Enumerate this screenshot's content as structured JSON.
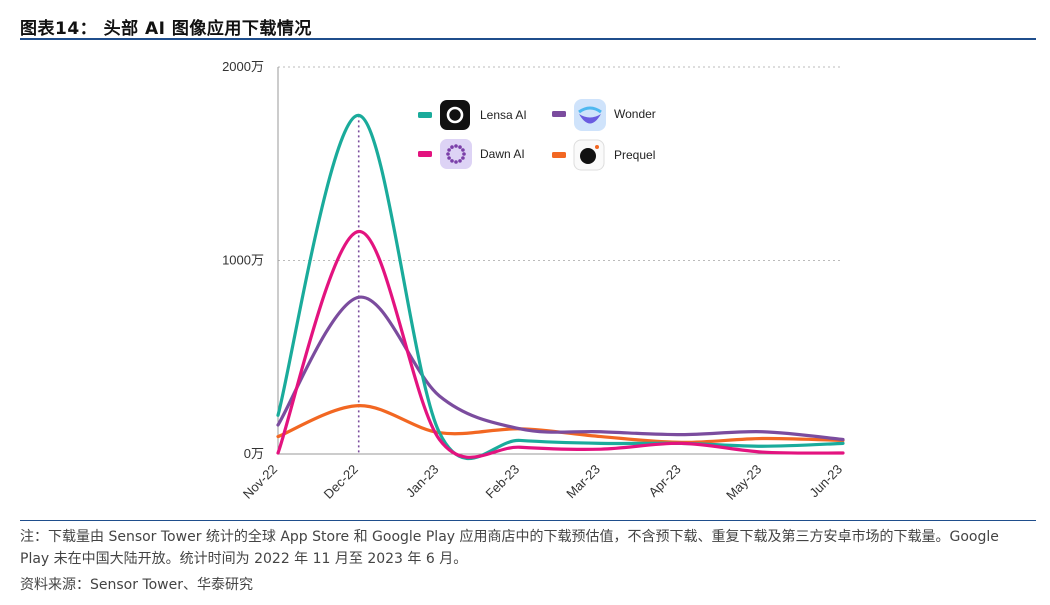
{
  "header": {
    "title": "图表14：  头部 AI 图像应用下载情况"
  },
  "chart_data": {
    "type": "line",
    "title": "",
    "xlabel": "",
    "ylabel": "",
    "categories": [
      "Nov-22",
      "Dec-22",
      "Jan-23",
      "Feb-23",
      "Mar-23",
      "Apr-23",
      "May-23",
      "Jun-23"
    ],
    "y_ticks": [
      "2000万",
      "1000万",
      "0万"
    ],
    "y_tick_values": [
      2000,
      1000,
      0
    ],
    "ylim": [
      0,
      2000
    ],
    "grid": "horizontal-dotted",
    "highlight_category": "Dec-22",
    "legend_position": "top-center",
    "series": [
      {
        "name": "Lensa AI",
        "color": "#1aab9b",
        "icon": "lensa-app-icon",
        "values": [
          200,
          1750,
          110,
          70,
          55,
          55,
          40,
          55
        ]
      },
      {
        "name": "Wonder",
        "color": "#7b4c9e",
        "icon": "wonder-app-icon",
        "values": [
          150,
          810,
          300,
          130,
          115,
          100,
          115,
          75
        ]
      },
      {
        "name": "Dawn AI",
        "color": "#e3137f",
        "icon": "dawn-app-icon",
        "values": [
          5,
          1150,
          75,
          35,
          25,
          55,
          10,
          5
        ]
      },
      {
        "name": "Prequel",
        "color": "#f26722",
        "icon": "prequel-app-icon",
        "values": [
          90,
          250,
          110,
          130,
          90,
          60,
          80,
          70
        ]
      }
    ]
  },
  "footer": {
    "note": "注：下载量由 Sensor Tower 统计的全球 App Store 和 Google Play 应用商店中的下载预估值，不含预下载、重复下载及第三方安卓市场的下载量。Google Play 未在中国大陆开放。统计时间为 2022 年 11 月至 2023 年 6 月。",
    "source": "资料来源：Sensor Tower、华泰研究"
  }
}
